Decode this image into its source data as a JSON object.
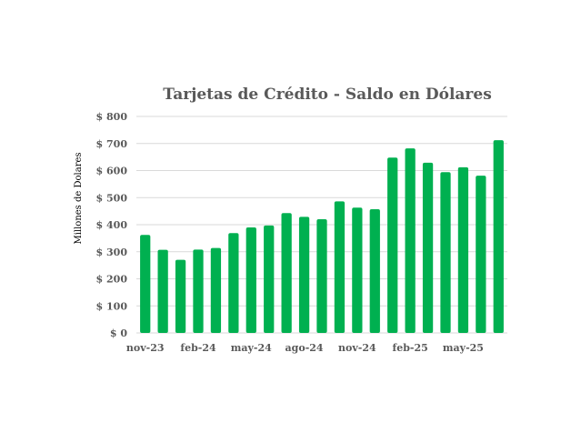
{
  "chart_data": {
    "type": "bar",
    "title": "Tarjetas de Crédito - Saldo en Dólares",
    "xlabel": "",
    "ylabel": "Millones de Dolares",
    "ylim": [
      0,
      800
    ],
    "ytick_values": [
      0,
      100,
      200,
      300,
      400,
      500,
      600,
      700,
      800
    ],
    "ytick_labels": [
      "$ 0",
      "$ 100",
      "$ 200",
      "$ 300",
      "$ 400",
      "$ 500",
      "$ 600",
      "$ 700",
      "$ 800"
    ],
    "categories": [
      "nov-23",
      "dic-23",
      "ene-24",
      "feb-24",
      "mar-24",
      "abr-24",
      "may-24",
      "jun-24",
      "jul-24",
      "ago-24",
      "sep-24",
      "oct-24",
      "nov-24",
      "dic-24",
      "ene-25",
      "feb-25",
      "mar-25",
      "abr-25",
      "may-25",
      "jun-25",
      "jul-25"
    ],
    "visible_tick_labels": [
      "nov-23",
      "feb-24",
      "may-24",
      "ago-24",
      "nov-24",
      "feb-25",
      "may-25"
    ],
    "series": [
      {
        "name": "Saldo",
        "color": "#00b050",
        "values": [
          362,
          307,
          270,
          308,
          314,
          369,
          390,
          397,
          443,
          429,
          420,
          486,
          463,
          457,
          648,
          682,
          629,
          594,
          612,
          581,
          712
        ]
      }
    ],
    "grid": true,
    "legend": "none"
  }
}
